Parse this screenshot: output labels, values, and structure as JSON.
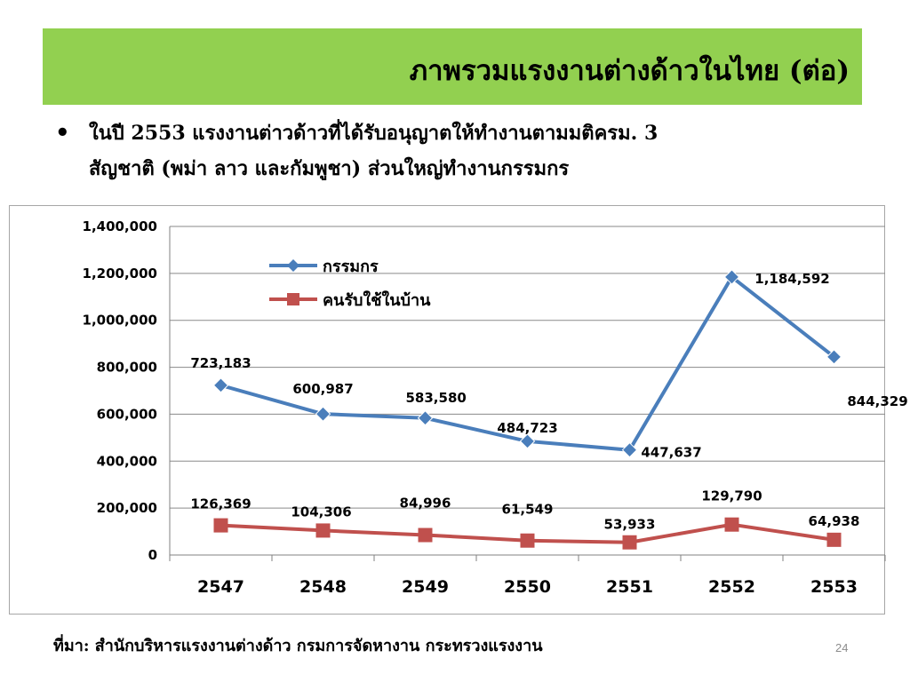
{
  "slide": {
    "title": "ภาพรวมแรงงานต่างด้าวในไทย  (ต่อ)",
    "bullet_symbol": "•",
    "bullet_lines": [
      "ในปี 2553 แรงงานต่าวด้าวที่ได้รับอนุญาตให้ทำงานตามมติครม. 3",
      "สัญชาติ (พม่า ลาว และกัมพูชา) ส่วนใหญ่ทำงานกรรมกร"
    ],
    "source": "ที่มา: สำนักบริหารแรงงานต่างด้าว กรมการจัดหางาน กระทรวงแรงงาน",
    "page_number": "24"
  },
  "chart_data": {
    "type": "line",
    "categories": [
      "2547",
      "2548",
      "2549",
      "2550",
      "2551",
      "2552",
      "2553"
    ],
    "ylim": [
      0,
      1400000
    ],
    "yticks": [
      0,
      200000,
      400000,
      600000,
      800000,
      1000000,
      1200000,
      1400000
    ],
    "ytick_labels": [
      "0",
      "200,000",
      "400,000",
      "600,000",
      "800,000",
      "1,000,000",
      "1,200,000",
      "1,400,000"
    ],
    "grid": true,
    "legend_position": "top-center",
    "series": [
      {
        "name": "กรรมกร",
        "color": "#4a7ebb",
        "marker": "diamond",
        "values": [
          723183,
          600987,
          583580,
          484723,
          447637,
          1184592,
          844329
        ],
        "labels": [
          "723,183",
          "600,987",
          "583,580",
          "484,723",
          "447,637",
          "1,184,592",
          "844,329"
        ]
      },
      {
        "name": "คนรับใช้ในบ้าน",
        "color": "#c0504d",
        "marker": "square",
        "values": [
          126369,
          104306,
          84996,
          61549,
          53933,
          129790,
          64938
        ],
        "labels": [
          "126,369",
          "104,306",
          "84,996",
          "61,549",
          "53,933",
          "129,790",
          "64,938"
        ]
      }
    ]
  }
}
